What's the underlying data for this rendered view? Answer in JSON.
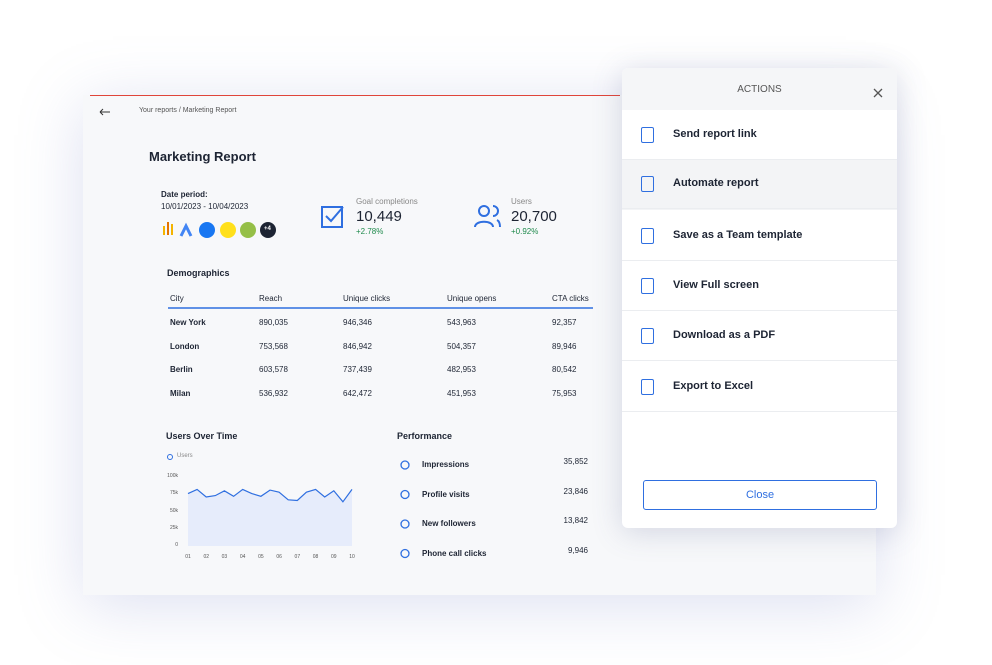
{
  "breadcrumb": "Your reports / Marketing Report",
  "report": {
    "title": "Marketing Report",
    "date_label": "Date period:",
    "date_range": "10/01/2023 - 10/04/2023",
    "more_sources": "+4"
  },
  "kpis": [
    {
      "label": "Goal completions",
      "value": "10,449",
      "change": "+2.78%"
    },
    {
      "label": "Users",
      "value": "20,700",
      "change": "+0.92%"
    }
  ],
  "demographics": {
    "title": "Demographics",
    "columns": [
      "City",
      "Reach",
      "Unique clicks",
      "Unique opens",
      "CTA clicks"
    ],
    "rows": [
      [
        "New York",
        "890,035",
        "946,346",
        "543,963",
        "92,357"
      ],
      [
        "London",
        "753,568",
        "846,942",
        "504,357",
        "89,946"
      ],
      [
        "Berlin",
        "603,578",
        "737,439",
        "482,953",
        "80,542"
      ],
      [
        "Milan",
        "536,932",
        "642,472",
        "451,953",
        "75,953"
      ]
    ]
  },
  "users_chart": {
    "type": "line",
    "title": "Users Over Time",
    "x": [
      1,
      1.5,
      2,
      2.5,
      3,
      3.5,
      4,
      4.5,
      5,
      5.5,
      6,
      6.5,
      7,
      7.5,
      8,
      8.5,
      9,
      9.5,
      10
    ],
    "series": [
      {
        "name": "Users",
        "color": "#2f6fe0",
        "values": [
          76000,
          82000,
          71000,
          73000,
          80000,
          72000,
          82000,
          76000,
          72000,
          81000,
          78000,
          67000,
          66000,
          78000,
          82000,
          71000,
          80000,
          64000,
          82000
        ]
      }
    ],
    "xlim": [
      0.5,
      10.2
    ],
    "ylim": [
      0,
      100000
    ],
    "xticks": [
      {
        "value": 1,
        "label": "01"
      },
      {
        "value": 2,
        "label": "02"
      },
      {
        "value": 3,
        "label": "03"
      },
      {
        "value": 4,
        "label": "04"
      },
      {
        "value": 5,
        "label": "05"
      },
      {
        "value": 6,
        "label": "06"
      },
      {
        "value": 7,
        "label": "07"
      },
      {
        "value": 8,
        "label": "08"
      },
      {
        "value": 9,
        "label": "09"
      },
      {
        "value": 10,
        "label": "10"
      }
    ],
    "yticks": [
      0,
      {
        "value": 25000,
        "label": "25k"
      },
      {
        "value": 50000,
        "label": "50k"
      },
      {
        "value": 75000,
        "label": "75k"
      },
      {
        "value": 100000,
        "label": "100k"
      }
    ]
  },
  "performance": {
    "title": "Performance",
    "items": [
      {
        "label": "Impressions",
        "value": "35,852"
      },
      {
        "label": "Profile visits",
        "value": "23,846"
      },
      {
        "label": "New followers",
        "value": "13,842"
      },
      {
        "label": "Phone call clicks",
        "value": "9,946"
      }
    ]
  },
  "actions": {
    "title": "ACTIONS",
    "items": [
      "Send report link",
      "Automate report",
      "Save as a Team template",
      "View Full screen",
      "Download as a PDF",
      "Export to Excel"
    ],
    "close": "Close"
  }
}
